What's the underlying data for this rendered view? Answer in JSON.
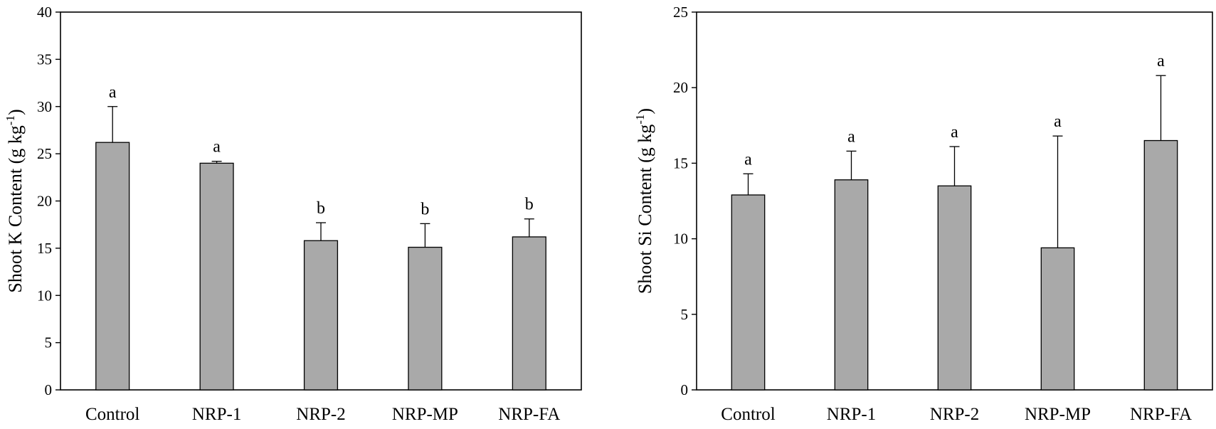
{
  "chart_data": [
    {
      "type": "bar",
      "categories": [
        "Control",
        "NRP-1",
        "NRP-2",
        "NRP-MP",
        "NRP-FA"
      ],
      "values": [
        26.2,
        24.0,
        15.8,
        15.1,
        16.2
      ],
      "error_bars": [
        3.8,
        0.2,
        1.9,
        2.5,
        1.9
      ],
      "significance": [
        "a",
        "a",
        "b",
        "b",
        "b"
      ],
      "ylabel": {
        "main": "Shoot K Content (g kg",
        "sup": "-1",
        "tail": ")"
      },
      "xlabel": "",
      "ylim": [
        0,
        40
      ],
      "yticks": [
        0,
        5,
        10,
        15,
        20,
        25,
        30,
        35,
        40
      ],
      "bar_color": "#a9a9a9",
      "grid": false
    },
    {
      "type": "bar",
      "categories": [
        "Control",
        "NRP-1",
        "NRP-2",
        "NRP-MP",
        "NRP-FA"
      ],
      "values": [
        12.9,
        13.9,
        13.5,
        9.4,
        16.5
      ],
      "error_bars": [
        1.4,
        1.9,
        2.6,
        7.4,
        4.3
      ],
      "significance": [
        "a",
        "a",
        "a",
        "a",
        "a"
      ],
      "ylabel": {
        "main": "Shoot Si Content (g kg",
        "sup": "-1",
        "tail": ")"
      },
      "xlabel": "",
      "ylim": [
        0,
        25
      ],
      "yticks": [
        0,
        5,
        10,
        15,
        20,
        25
      ],
      "bar_color": "#a9a9a9",
      "grid": false
    }
  ]
}
